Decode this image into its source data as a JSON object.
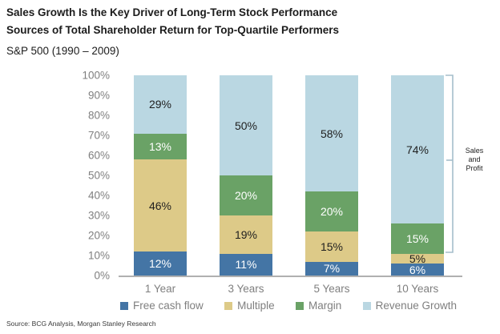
{
  "header": {
    "title_line1": "Sales Growth Is the Key Driver of Long-Term Stock Performance",
    "title_line2": "Sources of Total Shareholder Return for Top-Quartile Performers",
    "subtitle": "S&P 500 (1990 – 2009)"
  },
  "annotation": {
    "lines": [
      "Sales",
      "and",
      "Profit"
    ]
  },
  "footer": {
    "source": "Source: BCG Analysis, Morgan Stanley Research"
  },
  "colors": {
    "free_cash_flow": "#4475a5",
    "multiple": "#ddca88",
    "margin": "#6aa266",
    "revenue_growth": "#bad7e2",
    "axis_text": "#7f7f7f",
    "baseline": "#b0b0b0",
    "bracket": "#a5becb",
    "title_text": "#1c1c1c"
  },
  "chart_data": {
    "type": "bar",
    "stacked": true,
    "title": "Sources of Total Shareholder Return for Top-Quartile Performers",
    "xlabel": "",
    "ylabel": "",
    "ylim": [
      0,
      100
    ],
    "grid": false,
    "legend_position": "bottom",
    "value_label_format": "{v}%",
    "categories": [
      "1 Year",
      "3 Years",
      "5 Years",
      "10 Years"
    ],
    "yticks": [
      "0%",
      "10%",
      "20%",
      "30%",
      "40%",
      "50%",
      "60%",
      "70%",
      "80%",
      "90%",
      "100%"
    ],
    "series": [
      {
        "name": "Free cash flow",
        "color": "#4475a5",
        "label_color": "#ffffff",
        "values": [
          12,
          11,
          7,
          6
        ]
      },
      {
        "name": "Multiple",
        "color": "#ddca88",
        "label_color": "#1f1f1f",
        "values": [
          46,
          19,
          15,
          5
        ]
      },
      {
        "name": "Margin",
        "color": "#6aa266",
        "label_color": "#ffffff",
        "values": [
          13,
          20,
          20,
          15
        ]
      },
      {
        "name": "Revenue Growth",
        "color": "#bad7e2",
        "label_color": "#1f1f1f",
        "values": [
          29,
          50,
          58,
          74
        ]
      }
    ]
  }
}
